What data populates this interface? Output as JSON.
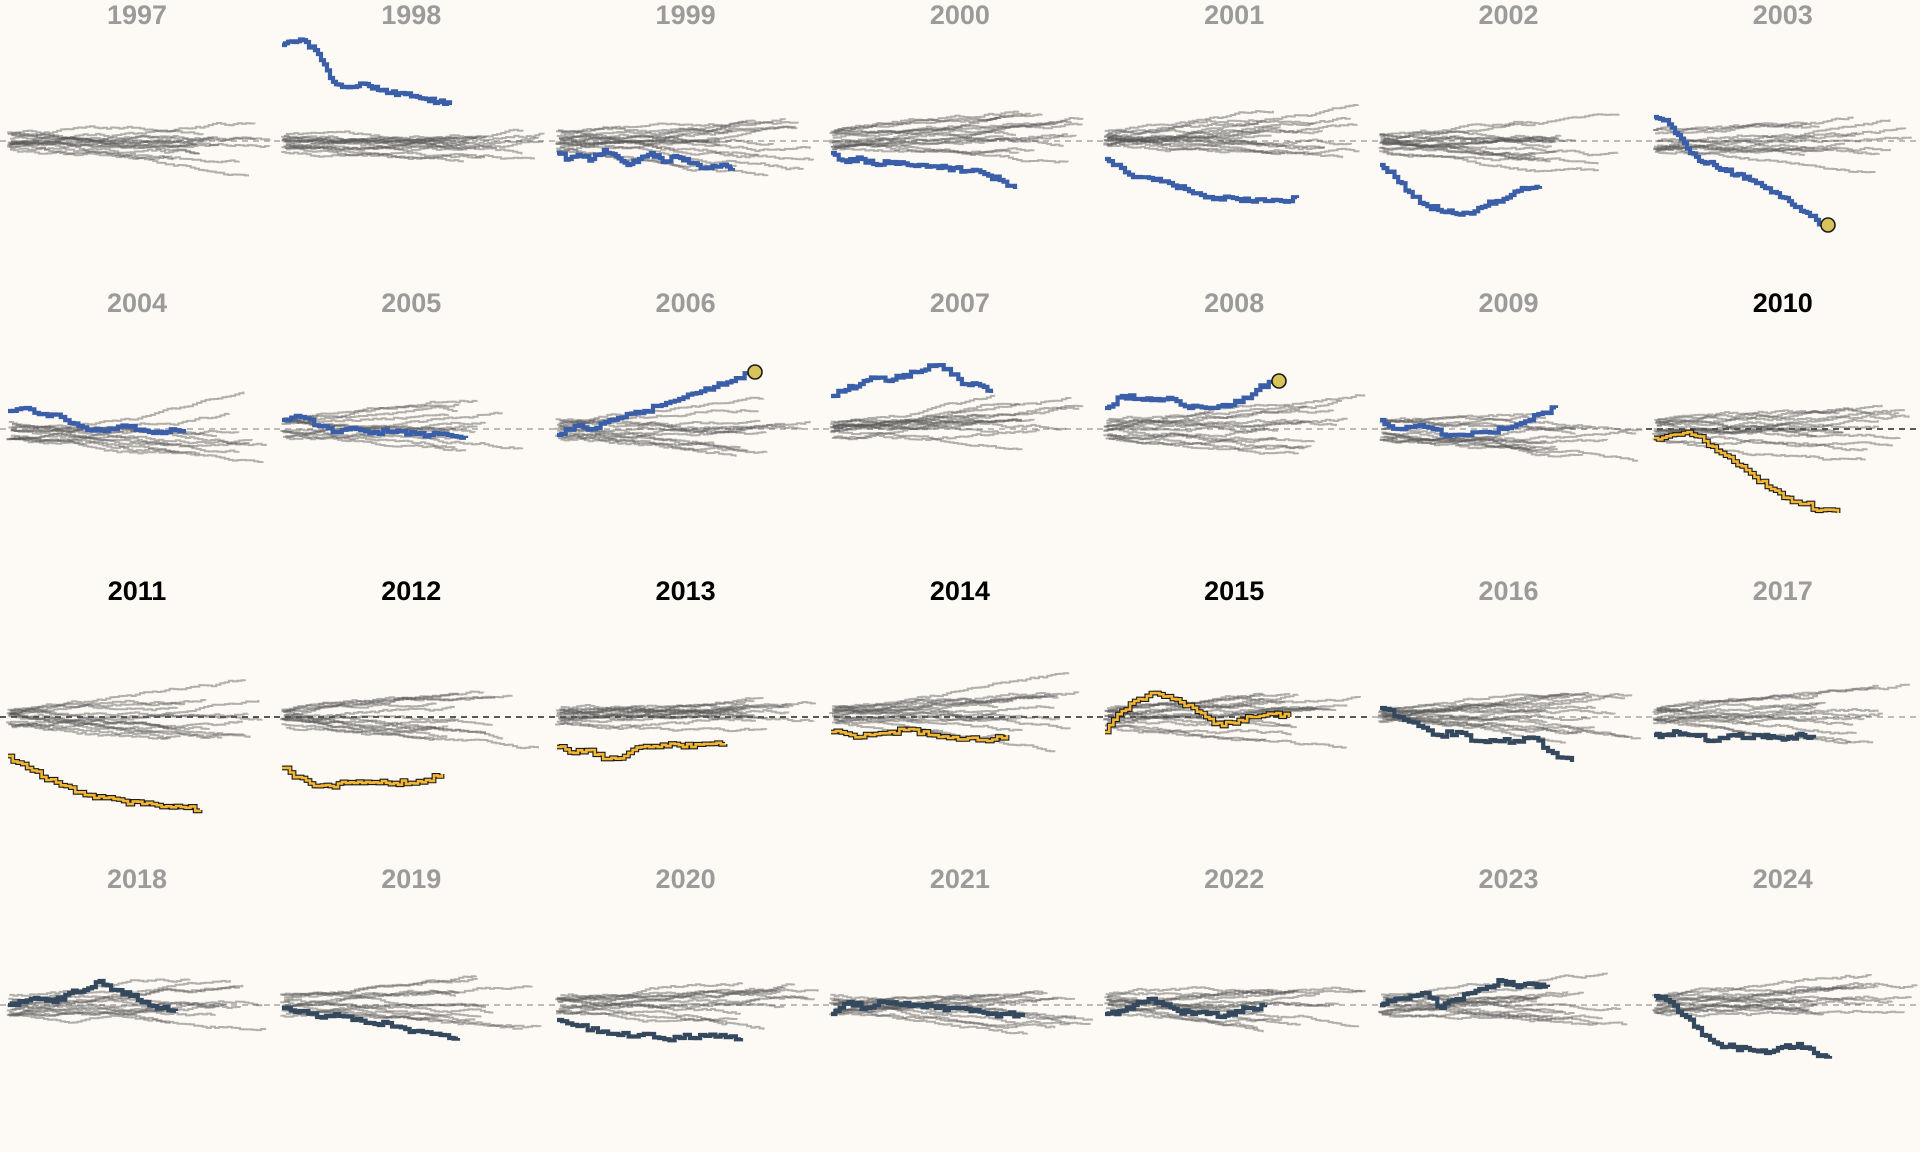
{
  "colors": {
    "background": "#fdf9f4",
    "gray_line": "#555555",
    "muted_title": "#9b9b9b",
    "highlight_title": "#000000",
    "blue": "#3a5ea8",
    "navy": "#34495e",
    "gold": "#f2b632",
    "marker_fill": "#d8c35a"
  },
  "chart_data": {
    "type": "line",
    "description_note": "",
    "panels": [
      {
        "year": "1997",
        "highlight": false,
        "focus": {
          "color": "none"
        }
      },
      {
        "year": "1998",
        "highlight": false,
        "focus": {
          "color": "blue",
          "values": [
            -3.2,
            -3.3,
            -3.3,
            -2.9,
            -2.1,
            -1.8,
            -1.8,
            -1.9,
            -1.7,
            -1.6,
            -1.6,
            -1.5,
            -1.4,
            -1.3,
            -1.2
          ],
          "end_marker": false
        }
      },
      {
        "year": "1999",
        "highlight": false,
        "focus": {
          "color": "blue",
          "values": [
            0.4,
            0.6,
            0.5,
            0.6,
            0.3,
            0.5,
            0.8,
            0.6,
            0.4,
            0.7,
            0.5,
            0.6,
            0.8,
            0.9,
            0.8,
            0.9
          ],
          "end_marker": false
        }
      },
      {
        "year": "2000",
        "highlight": false,
        "focus": {
          "color": "blue",
          "values": [
            0.4,
            0.7,
            0.6,
            0.8,
            0.7,
            0.8,
            0.8,
            0.9,
            0.9,
            1.0,
            1.1,
            1.3,
            1.6
          ],
          "end_marker": false
        }
      },
      {
        "year": "2001",
        "highlight": false,
        "focus": {
          "color": "blue",
          "values": [
            0.6,
            0.9,
            1.2,
            1.3,
            1.4,
            1.6,
            1.8,
            1.9,
            1.9,
            2.0,
            2.0,
            2.0,
            1.9
          ],
          "end_marker": false
        }
      },
      {
        "year": "2002",
        "highlight": false,
        "focus": {
          "color": "blue",
          "values": [
            0.8,
            1.2,
            1.7,
            2.1,
            2.3,
            2.4,
            2.4,
            2.2,
            2.0,
            1.8,
            1.6,
            1.5
          ],
          "end_marker": false
        }
      },
      {
        "year": "2003",
        "highlight": false,
        "focus": {
          "color": "blue",
          "values": [
            -0.8,
            -0.7,
            -0.2,
            0.4,
            0.7,
            0.8,
            1.0,
            1.1,
            1.3,
            1.5,
            1.7,
            1.9,
            2.2,
            2.5,
            2.8
          ],
          "end_marker": true
        }
      },
      {
        "year": "2004",
        "highlight": false,
        "focus": {
          "color": "blue",
          "values": [
            -0.6,
            -0.7,
            -0.5,
            -0.4,
            -0.1,
            0.0,
            0.0,
            -0.1,
            0.1,
            0.1,
            0.0
          ],
          "end_marker": false
        }
      },
      {
        "year": "2005",
        "highlight": false,
        "focus": {
          "color": "blue",
          "values": [
            -0.3,
            -0.4,
            -0.1,
            0.1,
            0.0,
            0.1,
            0.1,
            0.1,
            0.2,
            0.2,
            0.3
          ],
          "end_marker": false
        }
      },
      {
        "year": "2006",
        "highlight": false,
        "focus": {
          "color": "blue",
          "values": [
            0.2,
            -0.1,
            0.0,
            -0.3,
            -0.5,
            -0.6,
            -0.8,
            -1.0,
            -1.2,
            -1.4,
            -1.6,
            -1.9
          ],
          "end_marker": true
        }
      },
      {
        "year": "2007",
        "highlight": false,
        "focus": {
          "color": "blue",
          "values": [
            -1.1,
            -1.3,
            -1.5,
            -1.7,
            -1.6,
            -1.8,
            -1.9,
            -2.1,
            -2.0,
            -1.5,
            -1.5,
            -1.2
          ],
          "end_marker": false
        }
      },
      {
        "year": "2008",
        "highlight": false,
        "focus": {
          "color": "blue",
          "values": [
            -0.7,
            -1.1,
            -1.0,
            -1.0,
            -1.0,
            -0.7,
            -0.7,
            -0.8,
            -0.9,
            -1.3,
            -1.6
          ],
          "end_marker": true
        }
      },
      {
        "year": "2009",
        "highlight": false,
        "focus": {
          "color": "blue",
          "values": [
            -0.3,
            0.0,
            -0.1,
            0.0,
            0.2,
            0.2,
            0.1,
            0.0,
            -0.2,
            -0.5,
            -0.7
          ],
          "end_marker": false
        }
      },
      {
        "year": "2010",
        "highlight": true,
        "focus": {
          "color": "gold",
          "values": [
            0.3,
            0.2,
            0.1,
            0.4,
            0.8,
            1.2,
            1.6,
            2.0,
            2.3,
            2.5,
            2.7,
            2.8
          ],
          "end_marker": false
        }
      },
      {
        "year": "2011",
        "highlight": true,
        "focus": {
          "color": "gold",
          "values": [
            1.3,
            1.7,
            2.1,
            2.3,
            2.6,
            2.7,
            2.8,
            2.9,
            3.0,
            3.0,
            3.1
          ],
          "end_marker": false
        }
      },
      {
        "year": "2012",
        "highlight": true,
        "focus": {
          "color": "gold",
          "values": [
            1.7,
            2.0,
            2.3,
            2.3,
            2.2,
            2.2,
            2.2,
            2.2,
            2.2,
            2.1,
            1.9
          ],
          "end_marker": false
        }
      },
      {
        "year": "2013",
        "highlight": true,
        "focus": {
          "color": "gold",
          "values": [
            1.0,
            1.2,
            1.1,
            1.4,
            1.3,
            1.0,
            1.0,
            0.9,
            1.0,
            0.9,
            0.9
          ],
          "end_marker": false
        }
      },
      {
        "year": "2014",
        "highlight": true,
        "focus": {
          "color": "gold",
          "values": [
            0.5,
            0.6,
            0.6,
            0.5,
            0.4,
            0.6,
            0.7,
            0.7,
            0.8,
            0.6
          ],
          "end_marker": false
        }
      },
      {
        "year": "2015",
        "highlight": true,
        "focus": {
          "color": "gold",
          "values": [
            0.5,
            -0.2,
            -0.6,
            -0.8,
            -0.6,
            -0.4,
            0.0,
            0.3,
            0.1,
            0.0,
            -0.1,
            0.0
          ],
          "end_marker": false
        }
      },
      {
        "year": "2016",
        "highlight": false,
        "focus": {
          "color": "navy",
          "values": [
            -0.3,
            0.0,
            0.3,
            0.6,
            0.5,
            0.8,
            0.8,
            0.8,
            0.7,
            1.2,
            1.5
          ],
          "end_marker": false
        }
      },
      {
        "year": "2017",
        "highlight": false,
        "focus": {
          "color": "navy",
          "values": [
            0.6,
            0.6,
            0.5,
            0.6,
            0.6,
            0.8,
            0.7,
            0.6,
            0.7,
            0.6,
            0.7,
            0.7,
            0.7,
            0.6,
            0.7
          ],
          "end_marker": false
        }
      },
      {
        "year": "2018",
        "highlight": false,
        "focus": {
          "color": "navy",
          "values": [
            0.0,
            -0.1,
            -0.2,
            -0.1,
            -0.4,
            -0.5,
            -0.8,
            -0.5,
            -0.3,
            -0.1,
            0.1,
            0.2
          ],
          "end_marker": false
        }
      },
      {
        "year": "2019",
        "highlight": false,
        "focus": {
          "color": "navy",
          "values": [
            0.1,
            0.2,
            0.4,
            0.3,
            0.5,
            0.6,
            0.6,
            0.8,
            0.9,
            1.0,
            1.1
          ],
          "end_marker": false
        }
      },
      {
        "year": "2020",
        "highlight": false,
        "focus": {
          "color": "navy",
          "values": [
            0.5,
            0.7,
            0.9,
            1.0,
            1.0,
            1.1,
            1.1,
            1.0,
            1.0,
            1.1
          ],
          "end_marker": false
        }
      },
      {
        "year": "2021",
        "highlight": false,
        "focus": {
          "color": "navy",
          "values": [
            0.3,
            -0.1,
            0.1,
            -0.1,
            0.0,
            0.0,
            0.1,
            0.1,
            0.2,
            0.3,
            0.3,
            0.4
          ],
          "end_marker": false
        }
      },
      {
        "year": "2022",
        "highlight": false,
        "focus": {
          "color": "navy",
          "values": [
            0.3,
            0.2,
            0.0,
            -0.2,
            0.0,
            0.2,
            0.3,
            0.3,
            0.4,
            0.2,
            0.1,
            0.0
          ],
          "end_marker": false
        }
      },
      {
        "year": "2023",
        "highlight": false,
        "focus": {
          "color": "navy",
          "values": [
            0.0,
            -0.2,
            -0.3,
            -0.4,
            0.1,
            -0.2,
            -0.4,
            -0.6,
            -0.8,
            -0.6,
            -0.7,
            -0.6
          ],
          "end_marker": false
        }
      },
      {
        "year": "2024",
        "highlight": false,
        "focus": {
          "color": "navy",
          "values": [
            -0.3,
            -0.1,
            0.4,
            1.0,
            1.3,
            1.4,
            1.5,
            1.6,
            1.4,
            1.3,
            1.6,
            1.7
          ],
          "end_marker": false
        }
      }
    ],
    "x_axis": {
      "label": "",
      "ticks_shown": false
    },
    "y_axis": {
      "label": "",
      "ticks_shown": false,
      "baseline": 0
    },
    "grid": false,
    "legend": "none"
  }
}
